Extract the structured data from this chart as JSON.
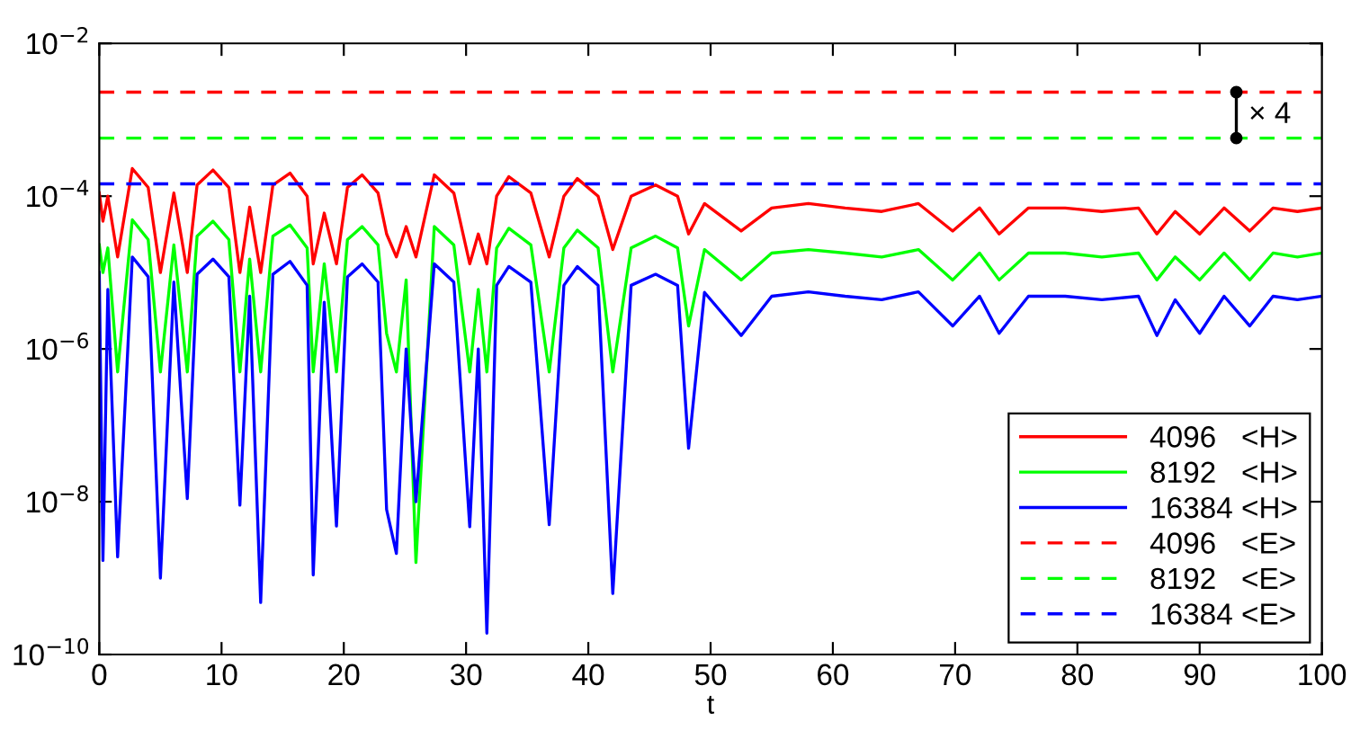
{
  "chart_data": {
    "type": "line",
    "xlabel": "t",
    "log": "y",
    "legend": "bottom right",
    "grid": false,
    "xlim": [
      0,
      100
    ],
    "xticks": [
      0,
      10,
      20,
      30,
      40,
      50,
      60,
      70,
      80,
      90,
      100
    ],
    "ylim": [
      1e-10,
      0.01
    ],
    "yticks": [
      {
        "value": 1e-10,
        "label": "10$^{−10}$"
      },
      {
        "value": 1e-08,
        "label": "10$^{−8}$"
      },
      {
        "value": 1e-06,
        "label": "10$^{−6}$"
      },
      {
        "value": 0.0001,
        "label": "10$^{−4}$"
      },
      {
        "value": 0.01,
        "label": "10$^{−2}$"
      }
    ],
    "x": [
      0,
      0.3,
      0.7,
      1.5,
      2.7,
      4,
      5,
      6.1,
      7.2,
      8,
      9.3,
      10.6,
      11.5,
      12.3,
      13.2,
      14.2,
      15.6,
      17,
      17.5,
      18.4,
      19.4,
      20.3,
      21.5,
      22.8,
      23.5,
      24.3,
      25.1,
      25.9,
      27.4,
      29,
      30.3,
      31,
      31.7,
      32.5,
      33.5,
      35.3,
      36.8,
      38,
      39.1,
      40.8,
      42,
      43.5,
      45.5,
      47.3,
      48.2,
      49.5,
      52.5,
      55,
      58,
      61,
      64,
      67,
      69.8,
      72,
      73.6,
      76,
      79,
      82,
      85,
      86.5,
      88,
      90,
      92,
      94.1,
      96,
      98,
      100
    ],
    "series": [
      {
        "name": "4096   <H>",
        "color": "#ff0000",
        "line_style": "solid",
        "values": [
          0.00011,
          4.7e-05,
          0.0001,
          1.6e-05,
          0.00023,
          0.00013,
          1e-05,
          0.00011,
          1e-05,
          0.00014,
          0.00022,
          0.00013,
          1e-05,
          7.2e-05,
          1e-05,
          0.00014,
          0.0002,
          0.0001,
          1.3e-05,
          6e-05,
          1.3e-05,
          0.00013,
          0.00019,
          0.00011,
          3.2e-05,
          1.6e-05,
          4e-05,
          1.6e-05,
          0.00019,
          0.00011,
          1.3e-05,
          3.2e-05,
          1.3e-05,
          0.0001,
          0.00018,
          0.00011,
          1.6e-05,
          0.0001,
          0.00017,
          0.0001,
          2e-05,
          0.0001,
          0.00014,
          0.0001,
          3.2e-05,
          8e-05,
          3.5e-05,
          7e-05,
          8e-05,
          7e-05,
          6.3e-05,
          8e-05,
          3.5e-05,
          7e-05,
          3.2e-05,
          7e-05,
          7e-05,
          6.3e-05,
          7e-05,
          3.2e-05,
          6.3e-05,
          3.2e-05,
          7e-05,
          3.5e-05,
          7e-05,
          6.3e-05,
          7e-05
        ]
      },
      {
        "name": "8192   <H>",
        "color": "#00ff00",
        "line_style": "solid",
        "values": [
          2.3e-05,
          1e-05,
          2.1e-05,
          5e-07,
          4.9e-05,
          2.7e-05,
          5e-07,
          2.3e-05,
          5e-07,
          3e-05,
          4.7e-05,
          2.7e-05,
          5e-07,
          1.5e-05,
          5e-07,
          3e-05,
          4.2e-05,
          2.1e-05,
          5e-07,
          1.3e-05,
          5e-07,
          2.7e-05,
          4e-05,
          2.3e-05,
          1.6e-06,
          5e-07,
          8e-06,
          1.6e-09,
          4e-05,
          2.3e-05,
          5e-07,
          6e-06,
          5e-07,
          2.1e-05,
          3.8e-05,
          2.3e-05,
          5e-07,
          2.1e-05,
          3.6e-05,
          2.1e-05,
          5e-07,
          2.1e-05,
          3e-05,
          2.1e-05,
          2e-06,
          2e-05,
          8e-06,
          1.8e-05,
          2e-05,
          1.8e-05,
          1.6e-05,
          2e-05,
          8e-06,
          1.8e-05,
          8e-06,
          1.8e-05,
          1.8e-05,
          1.6e-05,
          1.8e-05,
          8e-06,
          1.6e-05,
          8e-06,
          1.8e-05,
          8e-06,
          1.8e-05,
          1.6e-05,
          1.8e-05
        ]
      },
      {
        "name": "16384 <H>",
        "color": "#0000ff",
        "line_style": "solid",
        "values": [
          1e-05,
          1.7e-09,
          6e-06,
          1.9e-09,
          1.6e-05,
          8.8e-06,
          1e-09,
          7.5e-06,
          1.1e-08,
          9.5e-06,
          1.5e-05,
          8.8e-06,
          9e-09,
          4.9e-06,
          4.8e-10,
          9.5e-06,
          1.4e-05,
          6.8e-06,
          1.1e-09,
          4.1e-06,
          4.8e-09,
          8.8e-06,
          1.3e-05,
          7.5e-06,
          7.9e-09,
          2.1e-09,
          1e-06,
          1e-08,
          1.3e-05,
          7.5e-06,
          4.7e-09,
          1e-06,
          1.9e-10,
          6.8e-06,
          1.2e-05,
          7.5e-06,
          5e-09,
          6.8e-06,
          1.2e-05,
          6.8e-06,
          6.3e-10,
          6.8e-06,
          9.5e-06,
          6.8e-06,
          5e-08,
          5.5e-06,
          1.5e-06,
          4.9e-06,
          5.6e-06,
          4.9e-06,
          4.4e-06,
          5.6e-06,
          2e-06,
          4.9e-06,
          1.6e-06,
          4.9e-06,
          4.9e-06,
          4.4e-06,
          4.9e-06,
          1.5e-06,
          4.4e-06,
          1.6e-06,
          4.9e-06,
          2e-06,
          4.9e-06,
          4.4e-06,
          4.9e-06
        ]
      }
    ],
    "ref_lines": [
      {
        "axis": "y",
        "value": 0.0023,
        "label": "4096   <E>",
        "color": "#ff0000",
        "line_style": "dashed"
      },
      {
        "axis": "y",
        "value": 0.000575,
        "label": "8192   <E>",
        "color": "#00ff00",
        "line_style": "dashed"
      },
      {
        "axis": "y",
        "value": 0.000145,
        "label": "16384 <E>",
        "color": "#0000ff",
        "line_style": "dashed"
      }
    ],
    "annotations": [
      "× 4"
    ]
  }
}
